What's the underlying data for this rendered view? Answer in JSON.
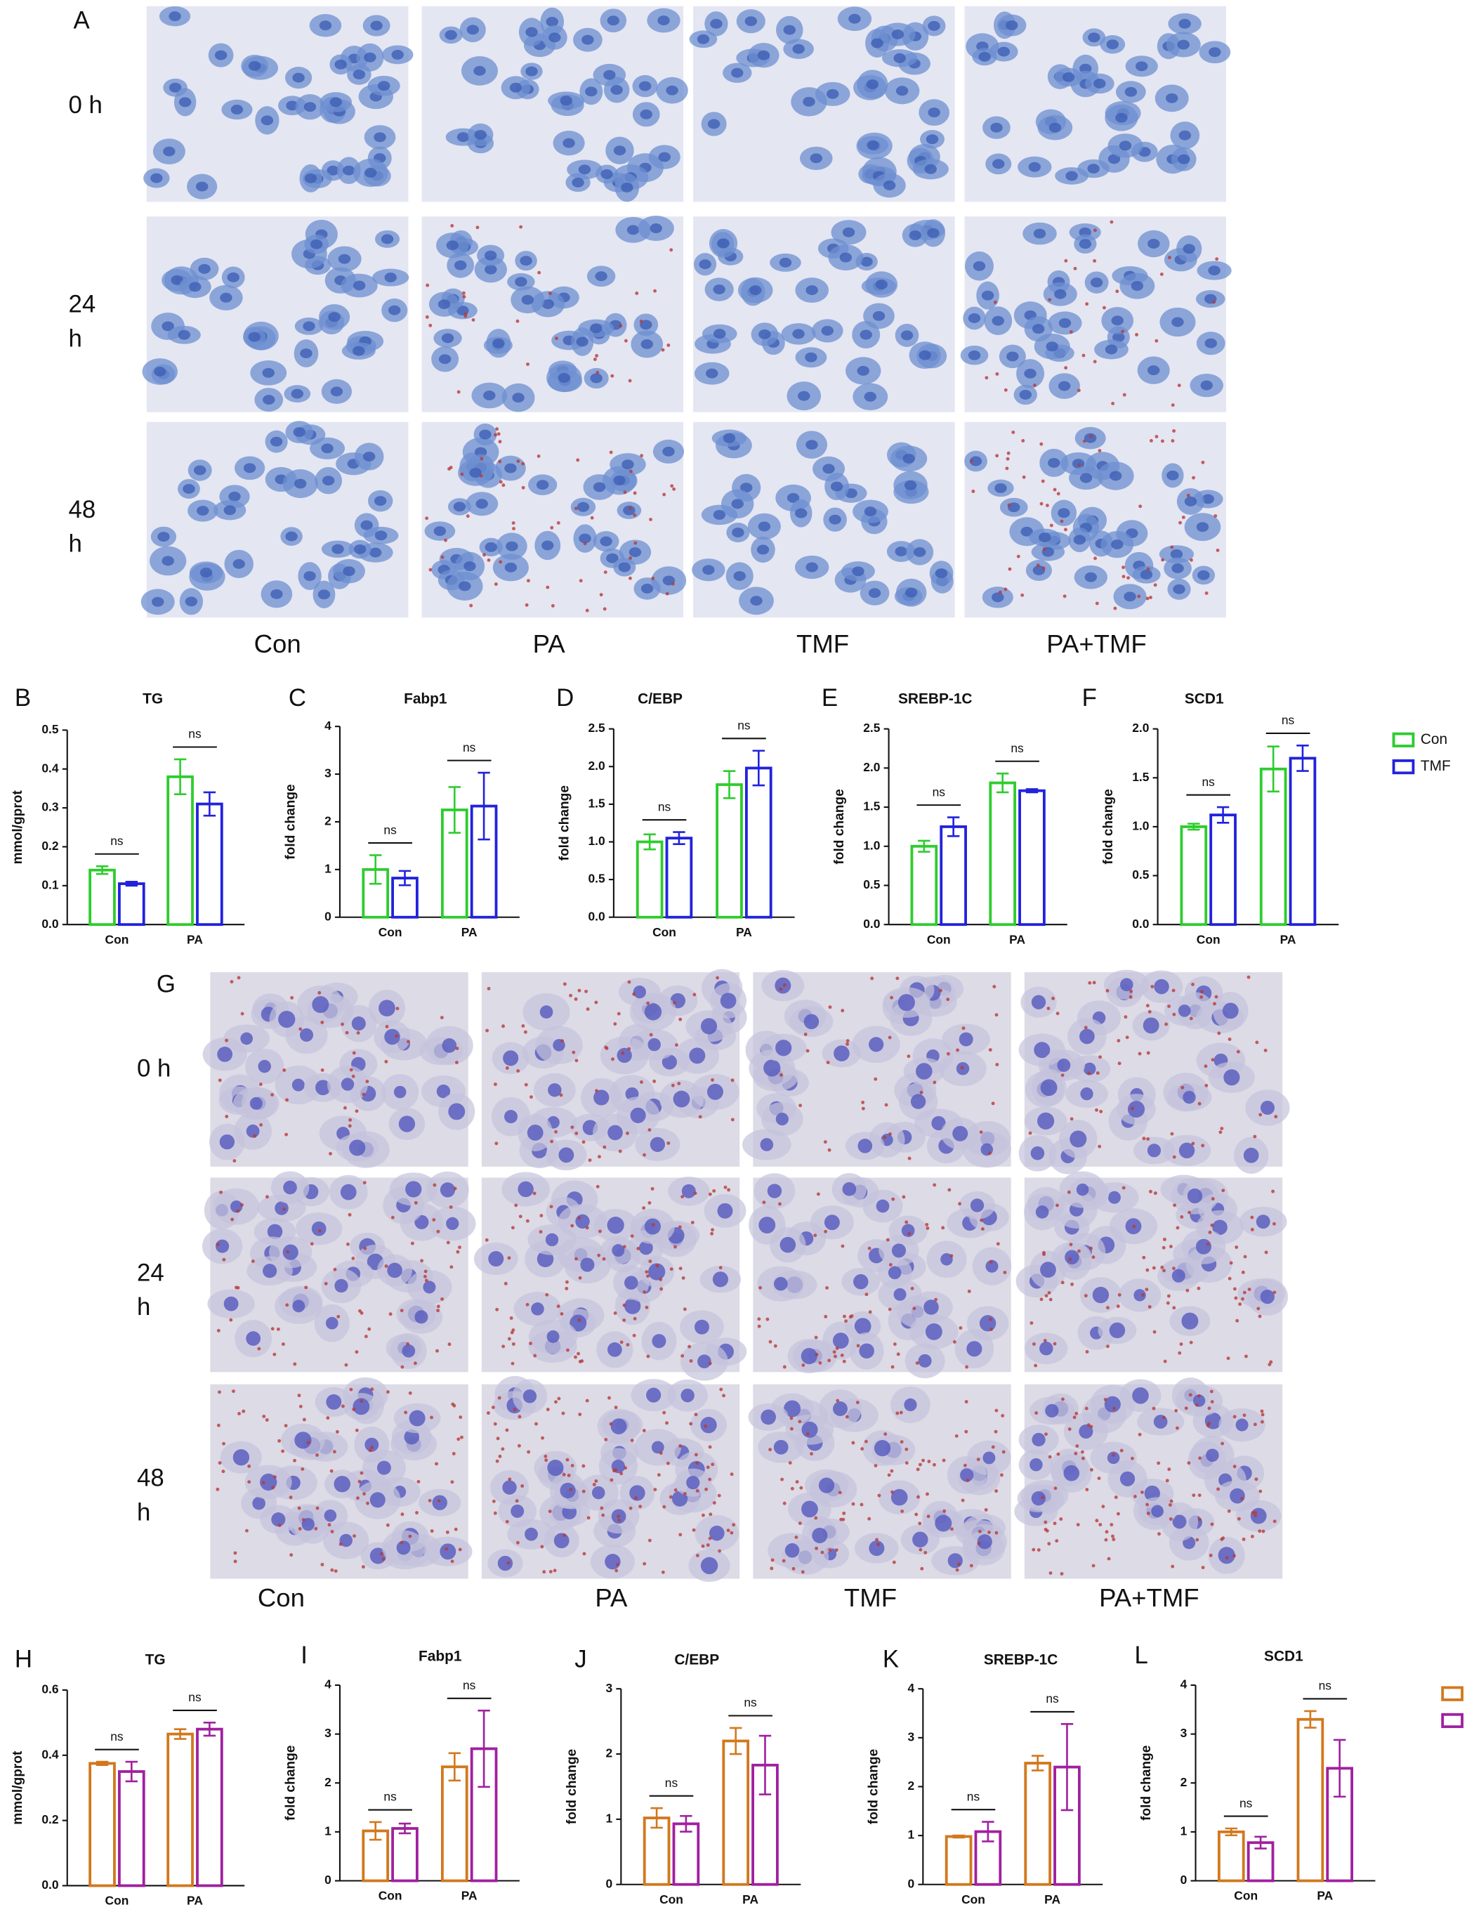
{
  "panels": [
    {
      "label": "A",
      "row_labels": [
        [
          "0 h"
        ],
        [
          "24",
          "h"
        ],
        [
          "48",
          "h"
        ]
      ],
      "columns": [
        "Con",
        "PA",
        "TMF",
        "PA+TMF"
      ]
    },
    {
      "label": "G",
      "row_labels": [
        [
          "0 h"
        ],
        [
          "24",
          "h"
        ],
        [
          "48",
          "h"
        ]
      ],
      "columns": [
        "Con",
        "PA",
        "TMF",
        "PA+TMF"
      ]
    }
  ],
  "chart_data": [
    {
      "type": "bar",
      "label": "B",
      "title": "TG",
      "y_label": "mmol/gprot",
      "categories": [
        "Con",
        "PA"
      ],
      "series": [
        {
          "name": "Con",
          "color": "#2ecc2e",
          "values": [
            0.14,
            0.38
          ],
          "errors": [
            0.01,
            0.045
          ]
        },
        {
          "name": "TMF",
          "color": "#2222dd",
          "values": [
            0.105,
            0.31
          ],
          "errors": [
            0.005,
            0.03
          ]
        }
      ],
      "ylim": [
        0,
        0.5
      ],
      "yticks": [
        {
          "value": 0,
          "label": "0.0"
        },
        0.1,
        0.2,
        0.3,
        0.4,
        0.5
      ],
      "annotations": [
        "ns",
        "ns"
      ]
    },
    {
      "type": "bar",
      "label": "C",
      "title": "Fabp1",
      "y_label": "fold change",
      "categories": [
        "Con",
        "PA"
      ],
      "series": [
        {
          "name": "Con",
          "color": "#2ecc2e",
          "values": [
            1.0,
            2.25
          ],
          "errors": [
            0.3,
            0.48
          ]
        },
        {
          "name": "TMF",
          "color": "#2222dd",
          "values": [
            0.82,
            2.33
          ],
          "errors": [
            0.15,
            0.7
          ]
        }
      ],
      "ylim": [
        0,
        4
      ],
      "yticks": [
        0,
        1,
        2,
        3,
        4
      ],
      "annotations": [
        "ns",
        "ns"
      ]
    },
    {
      "type": "bar",
      "label": "D",
      "title": "C/EBP",
      "y_label": "fold change",
      "categories": [
        "Con",
        "PA"
      ],
      "series": [
        {
          "name": "Con",
          "color": "#2ecc2e",
          "values": [
            1.0,
            1.76
          ],
          "errors": [
            0.1,
            0.18
          ]
        },
        {
          "name": "TMF",
          "color": "#2222dd",
          "values": [
            1.05,
            1.98
          ],
          "errors": [
            0.08,
            0.23
          ]
        }
      ],
      "ylim": [
        0,
        2.5
      ],
      "yticks": [
        {
          "value": 0,
          "label": "0.0"
        },
        0.5,
        {
          "value": 1,
          "label": "1.0"
        },
        1.5,
        {
          "value": 2,
          "label": "2.0"
        },
        2.5
      ],
      "annotations": [
        "ns",
        "ns"
      ]
    },
    {
      "type": "bar",
      "label": "E",
      "title": "SREBP-1C",
      "y_label": "fold change",
      "categories": [
        "Con",
        "PA"
      ],
      "series": [
        {
          "name": "Con",
          "color": "#2ecc2e",
          "values": [
            1.0,
            1.81
          ],
          "errors": [
            0.07,
            0.12
          ]
        },
        {
          "name": "TMF",
          "color": "#2222dd",
          "values": [
            1.25,
            1.71
          ],
          "errors": [
            0.12,
            0.02
          ]
        }
      ],
      "ylim": [
        0,
        2.5
      ],
      "yticks": [
        {
          "value": 0,
          "label": "0.0"
        },
        0.5,
        {
          "value": 1,
          "label": "1.0"
        },
        1.5,
        {
          "value": 2,
          "label": "2.0"
        },
        2.5
      ],
      "annotations": [
        "ns",
        "ns"
      ]
    },
    {
      "type": "bar",
      "label": "F",
      "title": "SCD1",
      "y_label": "fold change",
      "categories": [
        "Con",
        "PA"
      ],
      "series": [
        {
          "name": "Con",
          "color": "#2ecc2e",
          "values": [
            1.0,
            1.59
          ],
          "errors": [
            0.03,
            0.23
          ]
        },
        {
          "name": "TMF",
          "color": "#2222dd",
          "values": [
            1.12,
            1.7
          ],
          "errors": [
            0.08,
            0.13
          ]
        }
      ],
      "ylim": [
        0,
        2
      ],
      "yticks": [
        {
          "value": 0,
          "label": "0.0"
        },
        0.5,
        {
          "value": 1,
          "label": "1.0"
        },
        1.5,
        {
          "value": 2,
          "label": "2.0"
        }
      ],
      "annotations": [
        "ns",
        "ns"
      ],
      "legend": true
    },
    {
      "type": "bar",
      "label": "H",
      "title": "TG",
      "y_label": "mmol/gprot",
      "categories": [
        "Con",
        "PA"
      ],
      "series": [
        {
          "color": "#d2781e",
          "values": [
            0.375,
            0.465
          ],
          "errors": [
            0.005,
            0.015
          ]
        },
        {
          "color": "#a020a0",
          "values": [
            0.35,
            0.48
          ],
          "errors": [
            0.03,
            0.02
          ]
        }
      ],
      "ylim": [
        0,
        0.6
      ],
      "yticks": [
        {
          "value": 0,
          "label": "0.0"
        },
        0.2,
        0.4,
        0.6
      ],
      "annotations": [
        "ns",
        "ns"
      ]
    },
    {
      "type": "bar",
      "label": "I",
      "title": "Fabp1",
      "y_label": "fold change",
      "categories": [
        "Con",
        "PA"
      ],
      "series": [
        {
          "color": "#d2781e",
          "values": [
            1.02,
            2.33
          ],
          "errors": [
            0.18,
            0.28
          ]
        },
        {
          "color": "#a020a0",
          "values": [
            1.07,
            2.7
          ],
          "errors": [
            0.1,
            0.78
          ]
        }
      ],
      "ylim": [
        0,
        4
      ],
      "yticks": [
        0,
        1,
        2,
        3,
        4
      ],
      "annotations": [
        "ns",
        "ns"
      ]
    },
    {
      "type": "bar",
      "label": "J",
      "title": "C/EBP",
      "y_label": "fold change",
      "categories": [
        "Con",
        "PA"
      ],
      "series": [
        {
          "color": "#d2781e",
          "values": [
            1.02,
            2.2
          ],
          "errors": [
            0.15,
            0.2
          ]
        },
        {
          "color": "#a020a0",
          "values": [
            0.93,
            1.83
          ],
          "errors": [
            0.12,
            0.45
          ]
        }
      ],
      "ylim": [
        0,
        3
      ],
      "yticks": [
        0,
        1,
        2,
        3
      ],
      "annotations": [
        "ns",
        "ns"
      ]
    },
    {
      "type": "bar",
      "label": "K",
      "title": "SREBP-1C",
      "y_label": "fold change",
      "categories": [
        "Con",
        "PA"
      ],
      "series": [
        {
          "color": "#d2781e",
          "values": [
            0.98,
            2.48
          ],
          "errors": [
            0.02,
            0.15
          ]
        },
        {
          "color": "#a020a0",
          "values": [
            1.08,
            2.4
          ],
          "errors": [
            0.2,
            0.88
          ]
        }
      ],
      "ylim": [
        0,
        4
      ],
      "yticks": [
        0,
        1,
        2,
        3,
        4
      ],
      "annotations": [
        "ns",
        "ns"
      ]
    },
    {
      "type": "bar",
      "label": "L",
      "title": "SCD1",
      "y_label": "fold change",
      "categories": [
        "Con",
        "PA"
      ],
      "series": [
        {
          "color": "#d2781e",
          "values": [
            1.0,
            3.3
          ],
          "errors": [
            0.07,
            0.17
          ]
        },
        {
          "color": "#a020a0",
          "values": [
            0.78,
            2.3
          ],
          "errors": [
            0.12,
            0.58
          ]
        }
      ],
      "ylim": [
        0,
        4
      ],
      "yticks": [
        0,
        1,
        2,
        3,
        4
      ],
      "annotations": [
        "ns",
        "ns"
      ],
      "legend": true
    }
  ]
}
